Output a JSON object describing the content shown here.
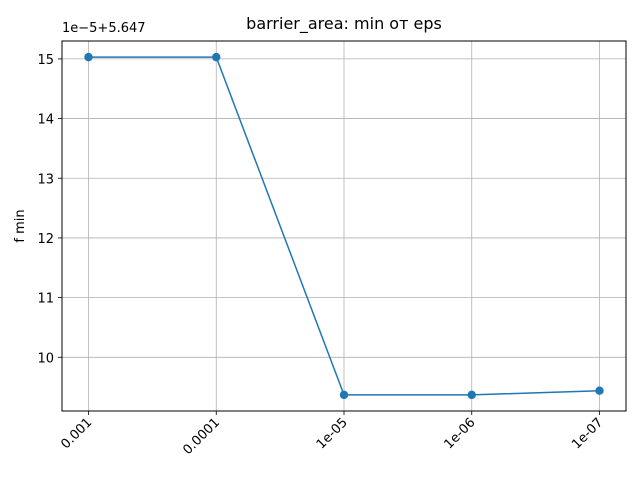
{
  "chart_data": {
    "type": "line",
    "title": "barrier_area: min от eps",
    "xlabel": "",
    "ylabel": "f min",
    "y_offset_label": "1e−5+5.647",
    "categories": [
      "0.001",
      "0.0001",
      "1e-05",
      "1e-06",
      "1e-07"
    ],
    "series": [
      {
        "values": [
          15.03,
          15.03,
          9.37,
          9.37,
          9.44
        ],
        "color": "#1f77b4",
        "marker": "circle"
      }
    ],
    "ylim": [
      9.1,
      15.3
    ],
    "yticks": [
      10,
      11,
      12,
      13,
      14,
      15
    ],
    "ytick_labels": [
      "10",
      "11",
      "12",
      "13",
      "14",
      "15"
    ],
    "xtick_rotation": 45,
    "grid": true
  }
}
